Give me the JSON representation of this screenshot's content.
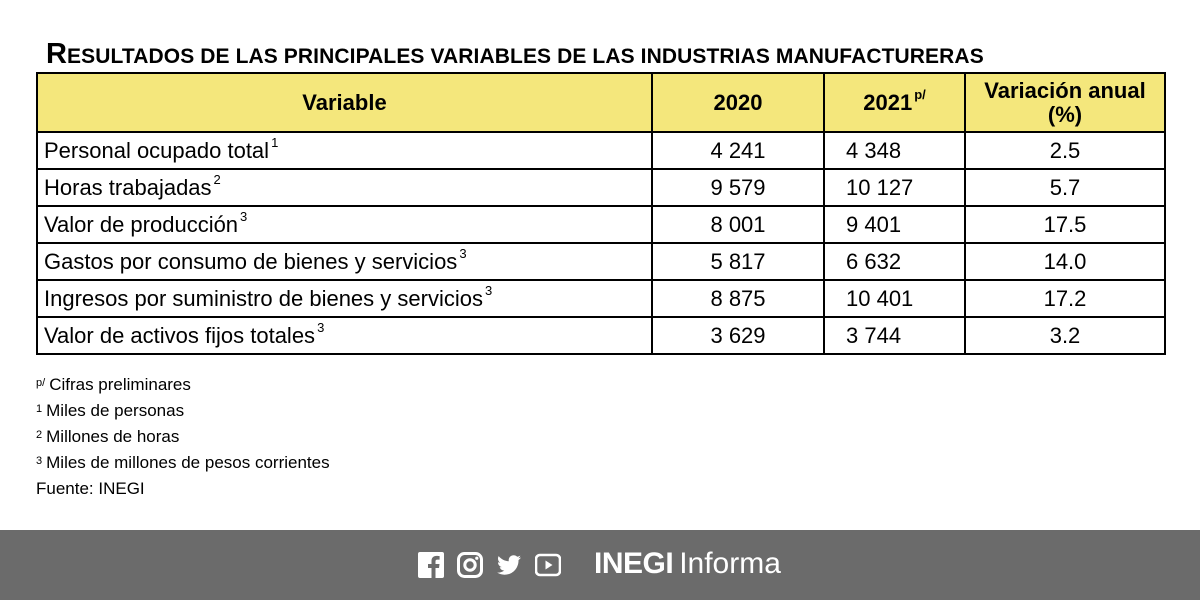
{
  "title": {
    "first_letter": "R",
    "rest": "ESULTADOS DE LAS PRINCIPALES VARIABLES DE LAS INDUSTRIAS MANUFACTURERAS"
  },
  "table": {
    "headers": {
      "variable": "Variable",
      "y2020": "2020",
      "y2021": "2021",
      "y2021_sup": "p/",
      "variation_line1": "Variación anual",
      "variation_line2": "(%)"
    },
    "rows": [
      {
        "label": "Personal ocupado total",
        "sup": "1",
        "y2020": "4 241",
        "y2021": "4 348",
        "var": "2.5"
      },
      {
        "label": "Horas trabajadas",
        "sup": "2",
        "y2020": "9 579",
        "y2021": "10 127",
        "var": "5.7"
      },
      {
        "label": "Valor de producción",
        "sup": "3",
        "y2020": "8 001",
        "y2021": "9 401",
        "var": "17.5"
      },
      {
        "label": "Gastos por consumo de bienes y servicios",
        "sup": "3",
        "y2020": "5 817",
        "y2021": "6 632",
        "var": "14.0"
      },
      {
        "label": "Ingresos por suministro de bienes y servicios",
        "sup": "3",
        "y2020": "8 875",
        "y2021": "10 401",
        "var": "17.2"
      },
      {
        "label": "Valor de activos fijos totales",
        "sup": "3",
        "y2020": "3 629",
        "y2021": "3 744",
        "var": "3.2"
      }
    ]
  },
  "notes": [
    {
      "sup": "p/",
      "text": "Cifras preliminares"
    },
    {
      "sup": "1",
      "text": "Miles de personas"
    },
    {
      "sup": "2",
      "text": "Millones de horas"
    },
    {
      "sup": "3",
      "text": "Miles de millones de pesos corrientes"
    },
    {
      "sup": "",
      "text": "Fuente: INEGI"
    }
  ],
  "footer": {
    "icons": [
      "facebook-icon",
      "instagram-icon",
      "twitter-icon",
      "youtube-icon"
    ],
    "brand_bold": "INEGI",
    "brand_light": "Informa",
    "colors": {
      "bar": "#6b6b6b",
      "header_fill": "#f4e77c"
    }
  }
}
